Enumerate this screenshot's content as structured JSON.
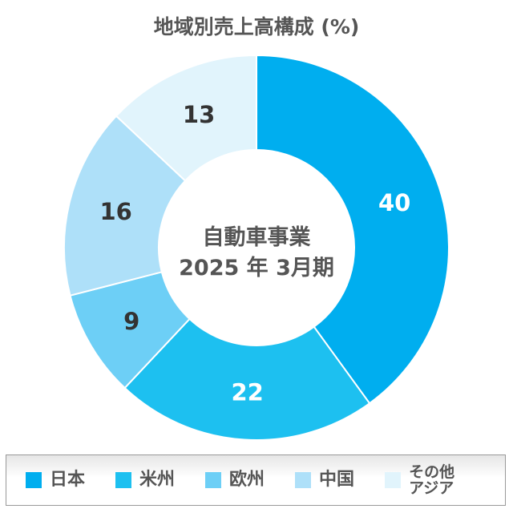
{
  "chart_data": {
    "type": "pie",
    "title": "地域別売上高構成 (%)",
    "center_label": [
      "自動車事業",
      "2025 年 3月期"
    ],
    "categories": [
      "日本",
      "米州",
      "欧州",
      "中国",
      "その他\nアジア"
    ],
    "values": [
      40,
      22,
      9,
      16,
      13
    ],
    "colors": [
      "#00aeef",
      "#1dc0f0",
      "#6dcff6",
      "#aee0f9",
      "#e1f4fc"
    ],
    "label_colors": [
      "#ffffff",
      "#ffffff",
      "#333333",
      "#333333",
      "#333333"
    ],
    "donut": true,
    "start": "top",
    "direction": "clockwise",
    "legend_position": "bottom"
  }
}
